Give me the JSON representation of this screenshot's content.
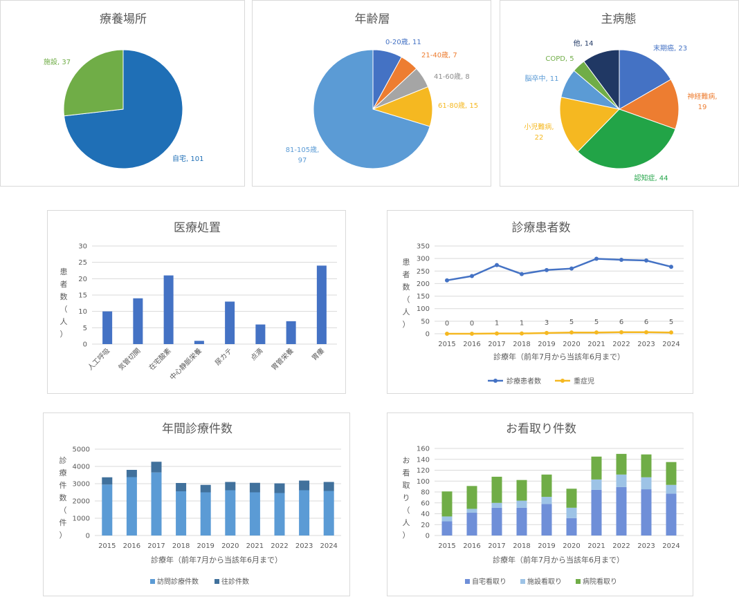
{
  "chart_data": [
    {
      "id": "place",
      "type": "pie",
      "title": "療養場所",
      "slices": [
        {
          "label": "自宅",
          "value": 101,
          "color": "#1F6FB6",
          "text": "自宅, 101"
        },
        {
          "label": "施設",
          "value": 37,
          "color": "#70AD47",
          "text": "施設, 37"
        }
      ]
    },
    {
      "id": "age",
      "type": "pie",
      "title": "年齢層",
      "slices": [
        {
          "label": "0-20歳",
          "value": 11,
          "color": "#4472C4",
          "text": "0-20歳, 11"
        },
        {
          "label": "21-40歳",
          "value": 7,
          "color": "#ED7D31",
          "text": "21-40歳, 7"
        },
        {
          "label": "41-60歳",
          "value": 8,
          "color": "#A5A5A5",
          "text": "41-60歳, 8"
        },
        {
          "label": "61-80歳",
          "value": 15,
          "color": "#F5B821",
          "text": "61-80歳, 15"
        },
        {
          "label": "81-105歳",
          "value": 97,
          "color": "#5B9BD5",
          "text": "81-105歳,",
          "text2": "97"
        }
      ]
    },
    {
      "id": "disease",
      "type": "pie",
      "title": "主病態",
      "slices": [
        {
          "label": "末期癌",
          "value": 23,
          "color": "#4472C4",
          "text": "末期癌, 23"
        },
        {
          "label": "神経難病",
          "value": 19,
          "color": "#ED7D31",
          "text": "神経難病,",
          "text2": "19"
        },
        {
          "label": "認知症",
          "value": 44,
          "color": "#22A447",
          "text": "認知症, 44"
        },
        {
          "label": "小児難病",
          "value": 22,
          "color": "#F5B821",
          "text": "小児難病,",
          "text2": "22"
        },
        {
          "label": "脳卒中",
          "value": 11,
          "color": "#5B9BD5",
          "text": "脳卒中, 11"
        },
        {
          "label": "COPD",
          "value": 5,
          "color": "#70AD47",
          "text": "COPD, 5"
        },
        {
          "label": "他",
          "value": 14,
          "color": "#203864",
          "text": "他, 14"
        }
      ]
    },
    {
      "id": "procedures",
      "type": "bar",
      "title": "医療処置",
      "categories": [
        "人工呼吸",
        "気管切開",
        "在宅酸素",
        "中心静脈栄養",
        "尿カテ",
        "点滴",
        "胃管栄養",
        "胃瘻"
      ],
      "values": [
        10,
        14,
        21,
        1,
        13,
        6,
        7,
        24
      ],
      "ylabel": "患者数（人）",
      "ylim": [
        0,
        30
      ],
      "yticks": [
        0,
        5,
        10,
        15,
        20,
        25,
        30
      ],
      "color": "#4472C4"
    },
    {
      "id": "patients",
      "type": "line",
      "title": "診療患者数",
      "x": [
        "2015",
        "2016",
        "2017",
        "2018",
        "2019",
        "2020",
        "2021",
        "2022",
        "2023",
        "2024"
      ],
      "series": [
        {
          "name": "診療患者数",
          "values": [
            213,
            230,
            274,
            238,
            254,
            260,
            299,
            295,
            292,
            267
          ],
          "color": "#4472C4"
        },
        {
          "name": "重症児",
          "values": [
            0,
            0,
            1,
            1,
            3,
            5,
            5,
            6,
            6,
            5
          ],
          "color": "#F5B821"
        }
      ],
      "data_labels": [
        "0",
        "0",
        "1",
        "1",
        "3",
        "5",
        "5",
        "6",
        "6",
        "5"
      ],
      "xlabel": "診療年（前年7月から当該年6月まで）",
      "ylabel": "患者数（人）",
      "ylim": [
        0,
        350
      ],
      "yticks": [
        0,
        50,
        100,
        150,
        200,
        250,
        300,
        350
      ]
    },
    {
      "id": "visits",
      "type": "bar",
      "stacked": true,
      "title": "年間診療件数",
      "x": [
        "2015",
        "2016",
        "2017",
        "2018",
        "2019",
        "2020",
        "2021",
        "2022",
        "2023",
        "2024"
      ],
      "series": [
        {
          "name": "訪問診療件数",
          "values": [
            2950,
            3380,
            3650,
            2560,
            2500,
            2620,
            2500,
            2460,
            2620,
            2580
          ],
          "color": "#5B9BD5"
        },
        {
          "name": "往診件数",
          "values": [
            420,
            420,
            620,
            480,
            430,
            480,
            550,
            560,
            560,
            520
          ],
          "color": "#41719C"
        }
      ],
      "xlabel": "診療年（前年7月から当該年6月まで）",
      "ylabel": "診療件数（件）",
      "ylim": [
        0,
        5000
      ],
      "yticks": [
        0,
        1000,
        2000,
        3000,
        4000,
        5000
      ]
    },
    {
      "id": "deaths",
      "type": "bar",
      "stacked": true,
      "title": "お看取り件数",
      "x": [
        "2015",
        "2016",
        "2017",
        "2018",
        "2019",
        "2020",
        "2021",
        "2022",
        "2023",
        "2024"
      ],
      "series": [
        {
          "name": "自宅看取り",
          "values": [
            26,
            42,
            51,
            51,
            58,
            32,
            84,
            89,
            85,
            77
          ],
          "color": "#6F8FD8"
        },
        {
          "name": "施設看取り",
          "values": [
            9,
            7,
            9,
            13,
            13,
            19,
            19,
            23,
            22,
            16
          ],
          "color": "#9DC3E6"
        },
        {
          "name": "病院看取り",
          "values": [
            46,
            42,
            48,
            38,
            41,
            35,
            42,
            38,
            42,
            42
          ],
          "color": "#70AD47"
        }
      ],
      "xlabel": "診療年（前年7月から当該年6月まで）",
      "ylabel": "お看取り（人）",
      "ylim": [
        0,
        160
      ],
      "yticks": [
        0,
        20,
        40,
        60,
        80,
        100,
        120,
        140,
        160
      ]
    }
  ]
}
